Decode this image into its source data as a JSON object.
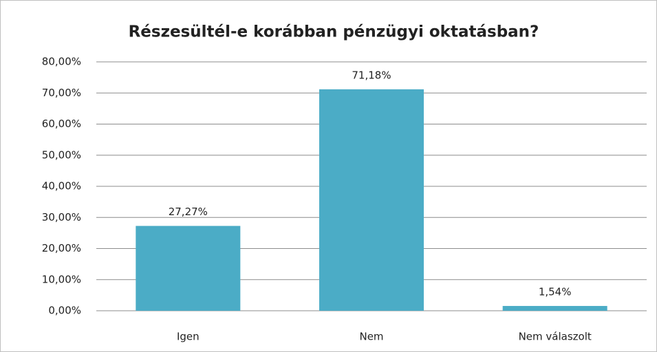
{
  "chart_data": {
    "type": "bar",
    "title": "Részesültél-e korábban pénzügyi oktatásban?",
    "categories": [
      "Igen",
      "Nem",
      "Nem válaszolt"
    ],
    "values": [
      27.27,
      71.18,
      1.54
    ],
    "value_labels": [
      "27,27%",
      "71,18%",
      "1,54%"
    ],
    "color": "#4bacc6",
    "ylim": [
      0,
      80
    ],
    "yticks": [
      {
        "value": 0,
        "label": "0,00%"
      },
      {
        "value": 10,
        "label": "10,00%"
      },
      {
        "value": 20,
        "label": "20,00%"
      },
      {
        "value": 30,
        "label": "30,00%"
      },
      {
        "value": 40,
        "label": "40,00%"
      },
      {
        "value": 50,
        "label": "50,00%"
      },
      {
        "value": 60,
        "label": "60,00%"
      },
      {
        "value": 70,
        "label": "70,00%"
      },
      {
        "value": 80,
        "label": "80,00%"
      }
    ],
    "grid": true
  }
}
